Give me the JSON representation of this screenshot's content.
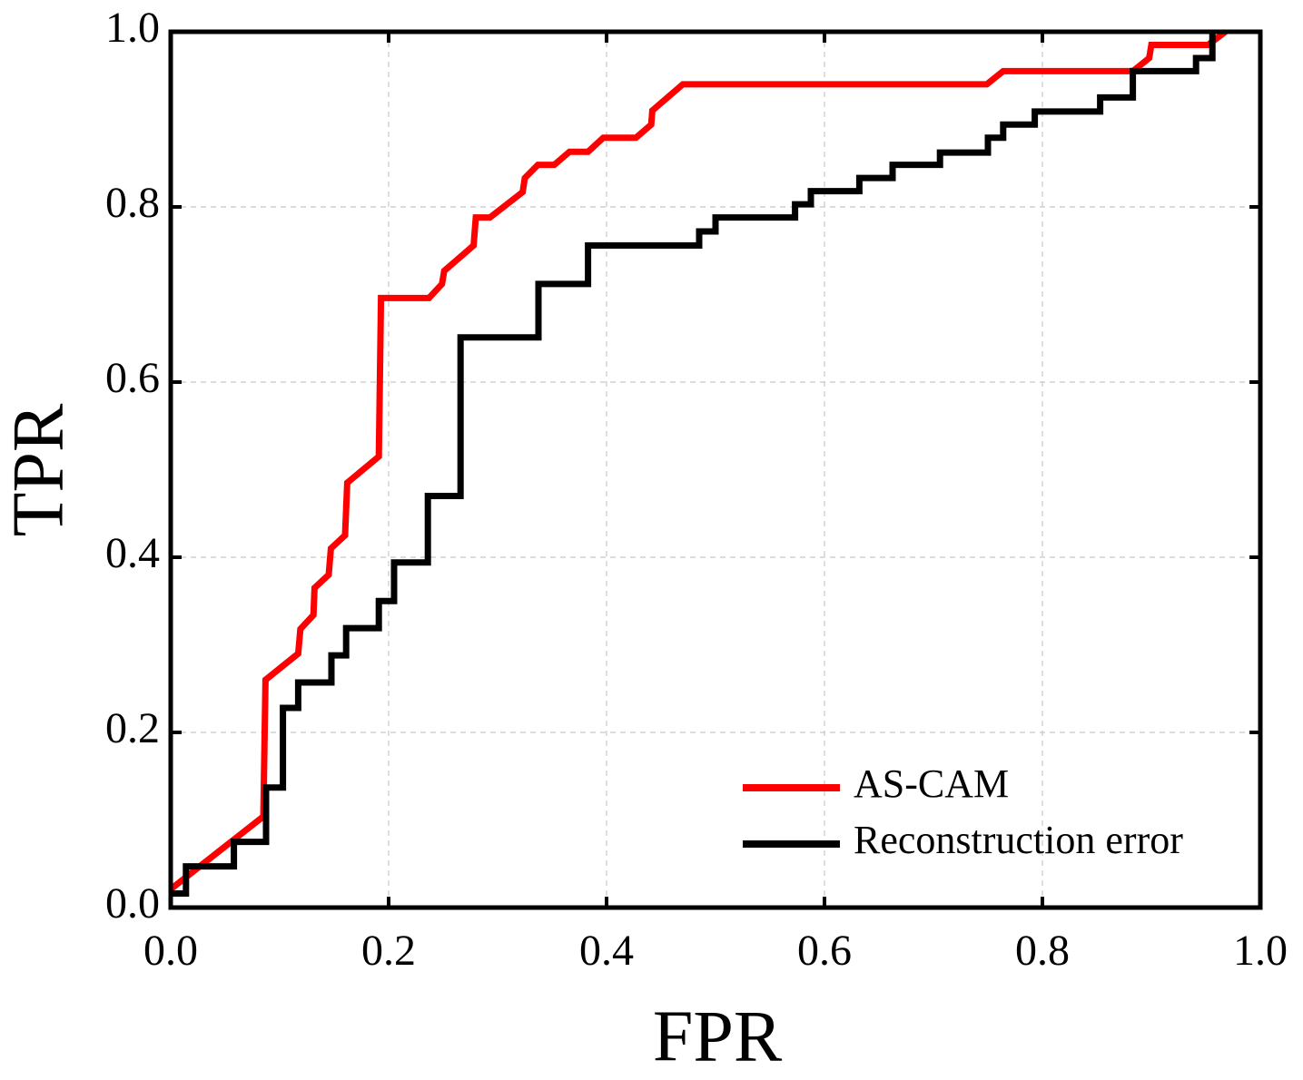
{
  "chart_data": {
    "type": "line",
    "x_label": "FPR",
    "y_label": "TPR",
    "xlim": [
      0,
      1
    ],
    "ylim": [
      0,
      1
    ],
    "xticks": [
      {
        "value": 0,
        "label": "0.0"
      },
      0.2,
      0.4,
      0.6,
      0.8,
      {
        "value": 1,
        "label": "1.0"
      }
    ],
    "yticks": [
      {
        "value": 0,
        "label": "0.0"
      },
      0.2,
      0.4,
      0.6,
      0.8,
      {
        "value": 1,
        "label": "1.0"
      }
    ],
    "grid": true,
    "legend": "lower right",
    "series": [
      {
        "name": "AS-CAM",
        "color": "#ff0000",
        "x": [
          0,
          0.085,
          0.087,
          0.117,
          0.119,
          0.131,
          0.132,
          0.145,
          0.147,
          0.16,
          0.162,
          0.191,
          0.193,
          0.237,
          0.249,
          0.251,
          0.278,
          0.28,
          0.293,
          0.323,
          0.325,
          0.337,
          0.352,
          0.366,
          0.383,
          0.397,
          0.427,
          0.441,
          0.442,
          0.47,
          0.749,
          0.764,
          0.883,
          0.898,
          0.9,
          0.952,
          0.968
        ],
        "values": [
          0.021,
          0.104,
          0.26,
          0.29,
          0.318,
          0.334,
          0.365,
          0.38,
          0.41,
          0.425,
          0.485,
          0.515,
          0.696,
          0.696,
          0.712,
          0.727,
          0.756,
          0.788,
          0.788,
          0.817,
          0.833,
          0.848,
          0.848,
          0.863,
          0.863,
          0.879,
          0.879,
          0.894,
          0.91,
          0.94,
          0.94,
          0.955,
          0.955,
          0.97,
          0.985,
          0.985,
          1.0
        ]
      },
      {
        "name": "Reconstruction error",
        "color": "#000000",
        "x": [
          0,
          0.014,
          0.014,
          0.058,
          0.058,
          0.0875,
          0.0875,
          0.103,
          0.103,
          0.117,
          0.117,
          0.1475,
          0.1475,
          0.161,
          0.161,
          0.191,
          0.191,
          0.205,
          0.205,
          0.236,
          0.236,
          0.266,
          0.266,
          0.3375,
          0.3375,
          0.383,
          0.383,
          0.485,
          0.485,
          0.5,
          0.5,
          0.573,
          0.573,
          0.5875,
          0.5875,
          0.632,
          0.632,
          0.6625,
          0.6625,
          0.706,
          0.706,
          0.75,
          0.75,
          0.764,
          0.764,
          0.793,
          0.793,
          0.853,
          0.853,
          0.883,
          0.883,
          0.941,
          0.941,
          0.956,
          0.956
        ],
        "values": [
          0.016,
          0.016,
          0.047,
          0.047,
          0.075,
          0.075,
          0.137,
          0.137,
          0.228,
          0.228,
          0.257,
          0.257,
          0.288,
          0.288,
          0.319,
          0.319,
          0.35,
          0.35,
          0.394,
          0.394,
          0.47,
          0.47,
          0.651,
          0.651,
          0.712,
          0.712,
          0.756,
          0.756,
          0.772,
          0.772,
          0.788,
          0.788,
          0.803,
          0.803,
          0.818,
          0.818,
          0.833,
          0.833,
          0.848,
          0.848,
          0.862,
          0.862,
          0.879,
          0.879,
          0.894,
          0.894,
          0.909,
          0.909,
          0.925,
          0.925,
          0.955,
          0.955,
          0.97,
          0.97,
          1.0
        ]
      }
    ]
  }
}
